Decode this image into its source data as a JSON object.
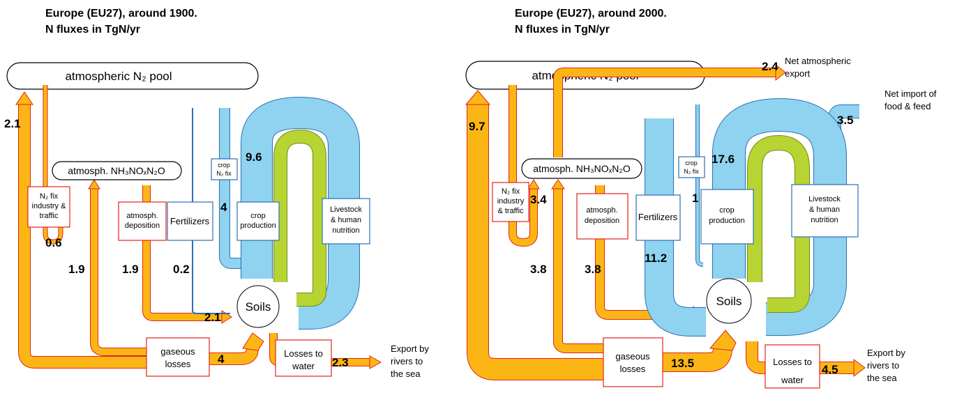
{
  "panels": [
    {
      "title": [
        "Europe (EU27), around 1900.",
        "N fluxes in TgN/yr"
      ],
      "pool": "atmospheric N₂ pool",
      "reactive_pool": "atmosph. NH₃NOₓN₂O",
      "boxes": {
        "industry_fix": [
          "N₂ fix",
          "industry &",
          "traffic"
        ],
        "deposition": [
          "atmosph.",
          "deposition"
        ],
        "fertilizers": "Fertilizers",
        "crop_fix": [
          "crop",
          "N₂ fix"
        ],
        "crop_production": [
          "crop",
          "production"
        ],
        "livestock": [
          "Livestock",
          "& human",
          "nutrition"
        ],
        "soils": "Soils",
        "gaseous_losses": [
          "gaseous",
          "losses"
        ],
        "losses_to_water": [
          "Losses to",
          "water"
        ]
      },
      "export_note": [
        "Export by",
        "rivers to",
        "the sea"
      ],
      "fluxes": [
        2.1,
        0.6,
        1.9,
        1.9,
        0.2,
        2.1,
        4,
        9.6,
        4,
        2.3
      ]
    },
    {
      "title": [
        "Europe (EU27), around 2000.",
        "N fluxes in TgN/yr"
      ],
      "pool": "atmospheric N₂ pool",
      "reactive_pool": "atmosph. NH₃NOₓN₂O",
      "boxes": {
        "industry_fix": [
          "N₂ fix",
          "industry",
          "& traffic"
        ],
        "deposition": [
          "atmosph.",
          "deposition"
        ],
        "fertilizers": "Fertilizers",
        "crop_fix": [
          "crop",
          "N₂ fix"
        ],
        "crop_production": [
          "crop",
          "production"
        ],
        "livestock": [
          "Livestock",
          "& human",
          "nutrition"
        ],
        "soils": "Soils",
        "gaseous_losses": [
          "gaseous",
          "losses"
        ],
        "losses_to_water": [
          "Losses to",
          "water"
        ]
      },
      "export_note": [
        "Export by",
        "rivers to",
        "the sea"
      ],
      "atmospheric_export_note": [
        "Net atmospheric",
        "export"
      ],
      "import_note": [
        "Net import of",
        "food & feed"
      ],
      "fluxes": [
        9.7,
        2.4,
        3.5,
        17.6,
        3.4,
        1,
        3.8,
        3.8,
        11.2,
        13.5,
        4.5
      ]
    }
  ]
}
